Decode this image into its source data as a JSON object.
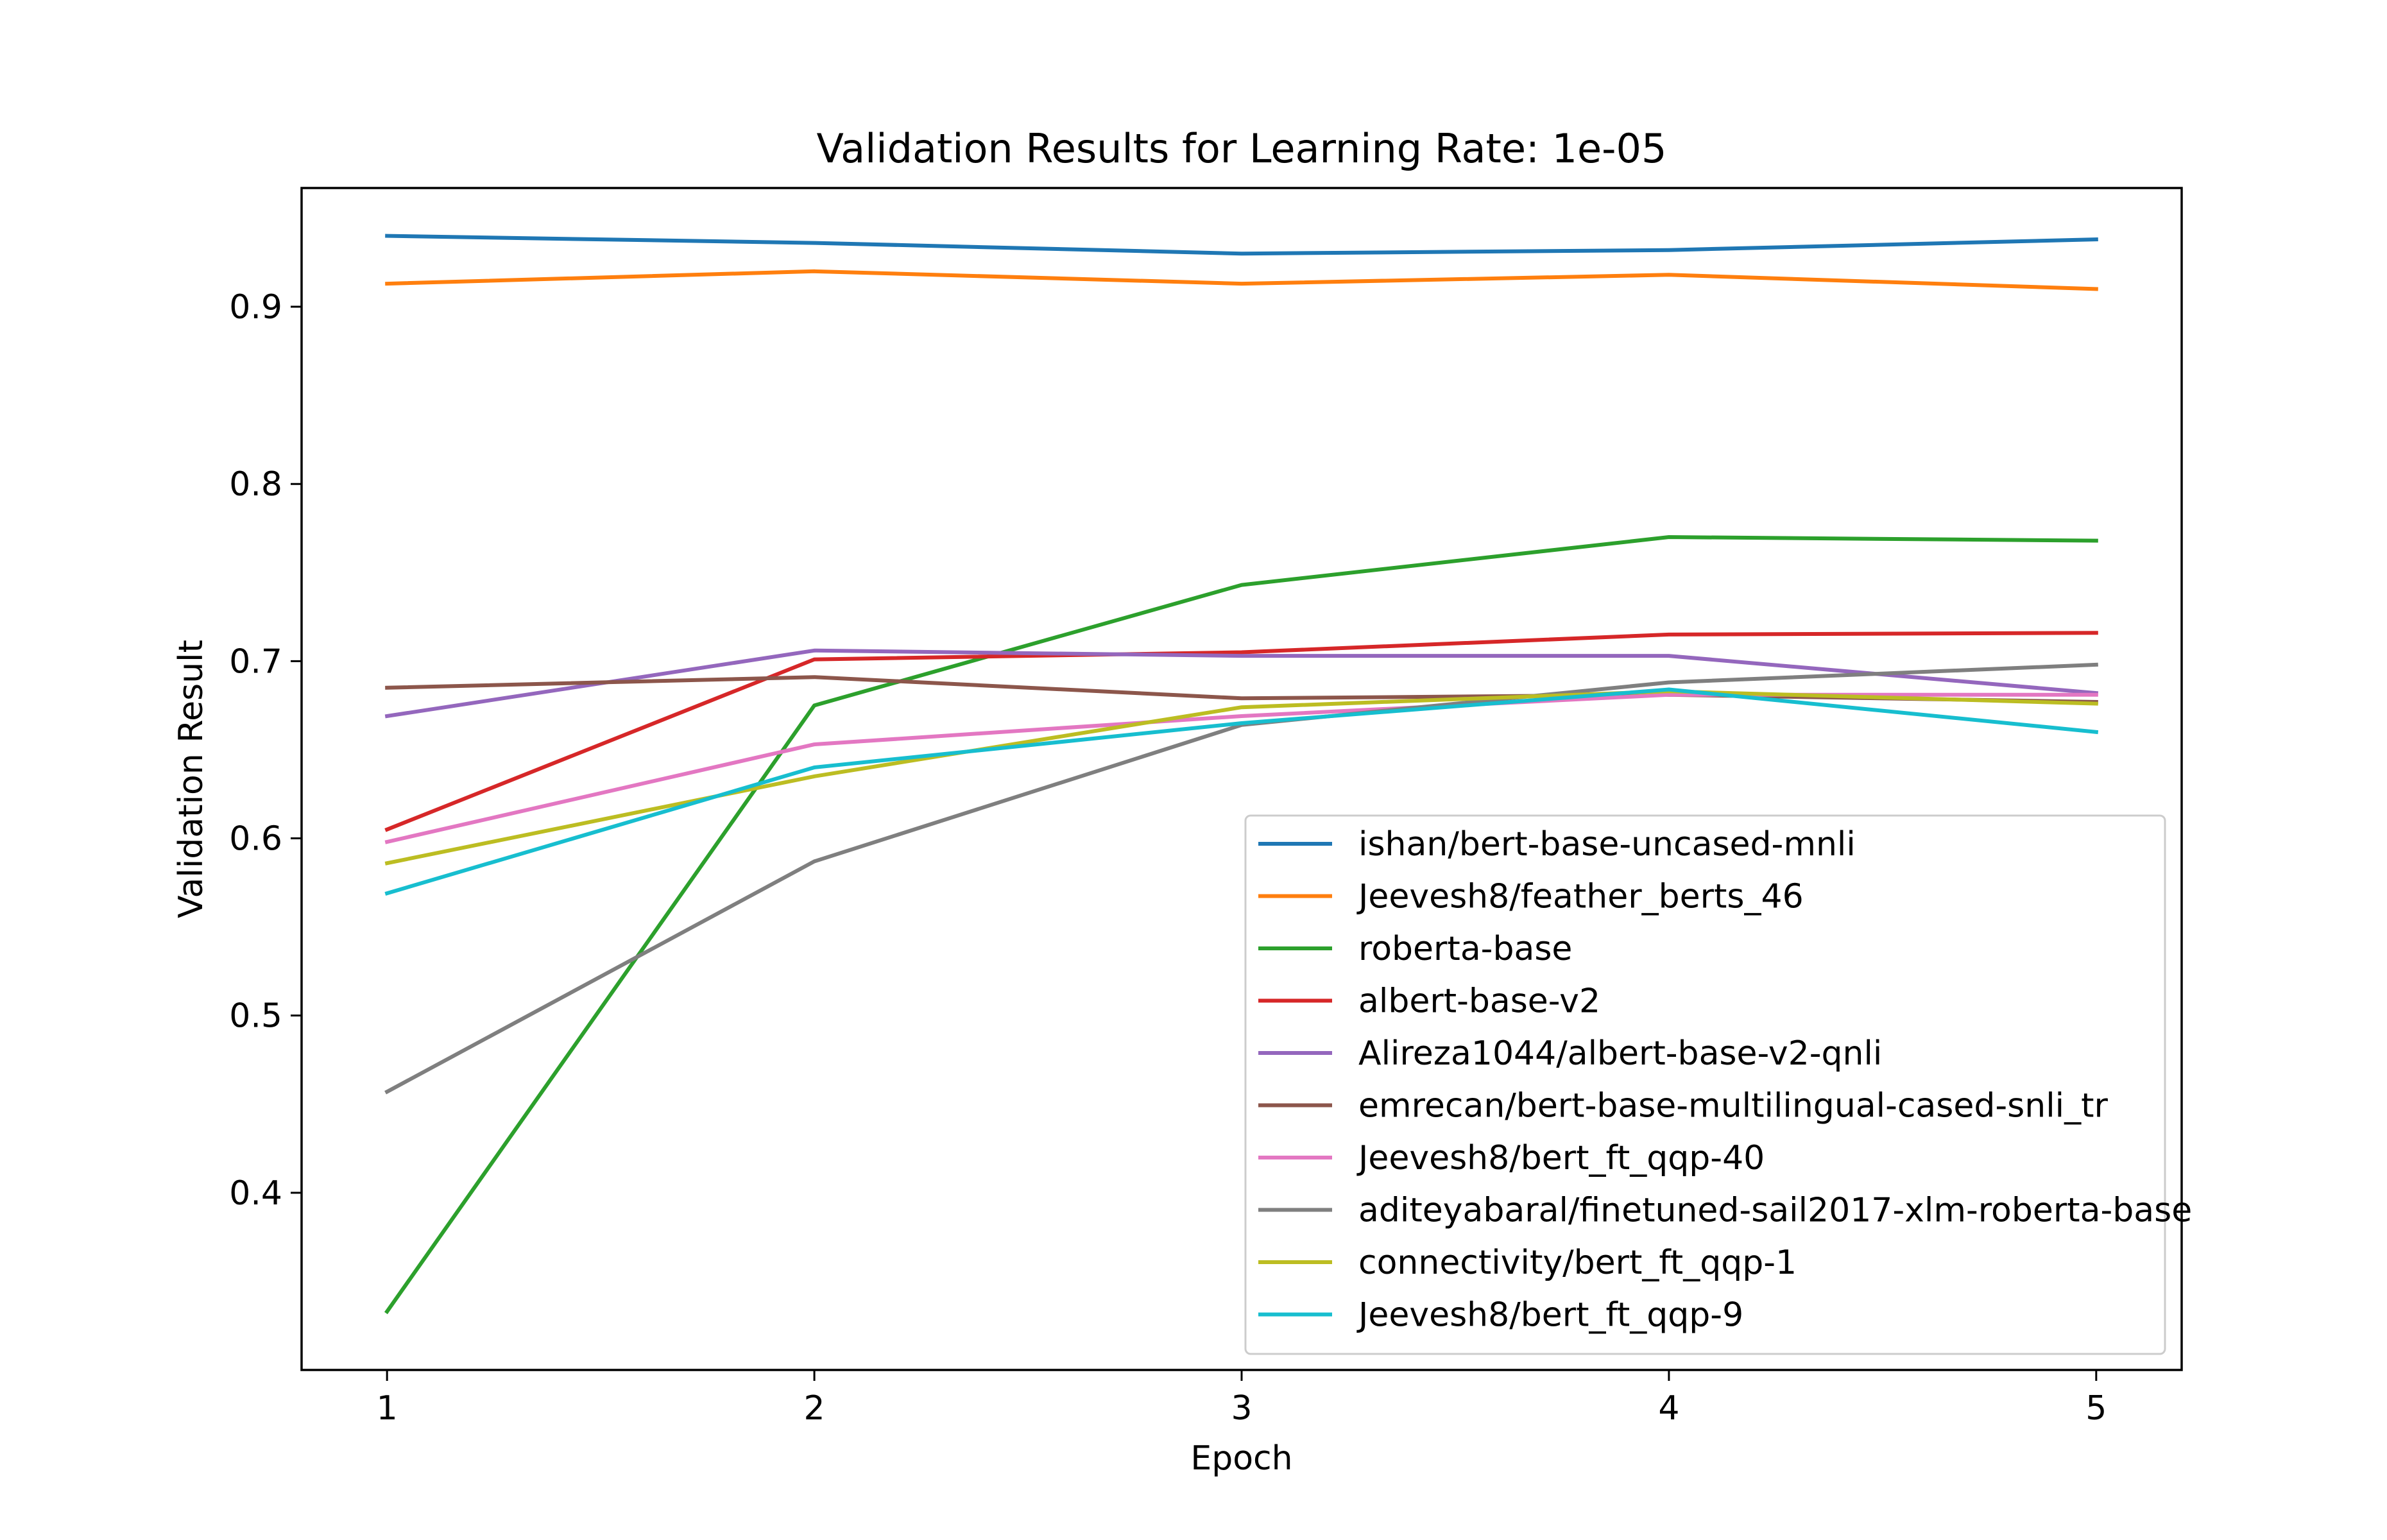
{
  "chart_data": {
    "type": "line",
    "title": "Validation Results for Learning Rate: 1e-05",
    "xlabel": "Epoch",
    "ylabel": "Validation Result",
    "x": [
      1,
      2,
      3,
      4,
      5
    ],
    "xlim": [
      0.8,
      5.2
    ],
    "ylim": [
      0.3,
      0.967
    ],
    "xticks": [
      "1",
      "2",
      "3",
      "4",
      "5"
    ],
    "yticks": [
      0.4,
      0.5,
      0.6,
      0.7,
      0.8,
      0.9
    ],
    "ytick_labels": [
      "0.4",
      "0.5",
      "0.6",
      "0.7",
      "0.8",
      "0.9"
    ],
    "grid": false,
    "legend_position": "lower right",
    "series": [
      {
        "name": "ishan/bert-base-uncased-mnli",
        "color": "#1f77b4",
        "values": [
          0.94,
          0.936,
          0.93,
          0.932,
          0.938
        ]
      },
      {
        "name": "Jeevesh8/feather_berts_46",
        "color": "#ff7f0e",
        "values": [
          0.913,
          0.92,
          0.913,
          0.918,
          0.91
        ]
      },
      {
        "name": "roberta-base",
        "color": "#2ca02c",
        "values": [
          0.333,
          0.675,
          0.743,
          0.77,
          0.768
        ]
      },
      {
        "name": "albert-base-v2",
        "color": "#d62728",
        "values": [
          0.605,
          0.701,
          0.705,
          0.715,
          0.716
        ]
      },
      {
        "name": "Alireza1044/albert-base-v2-qnli",
        "color": "#9467bd",
        "values": [
          0.669,
          0.706,
          0.703,
          0.703,
          0.682
        ]
      },
      {
        "name": "emrecan/bert-base-multilingual-cased-snli_tr",
        "color": "#8c564b",
        "values": [
          0.685,
          0.691,
          0.679,
          0.681,
          0.677
        ]
      },
      {
        "name": "Jeevesh8/bert_ft_qqp-40",
        "color": "#e377c2",
        "values": [
          0.598,
          0.653,
          0.669,
          0.681,
          0.681
        ]
      },
      {
        "name": "aditeyabaral/finetuned-sail2017-xlm-roberta-base",
        "color": "#7f7f7f",
        "values": [
          0.457,
          0.587,
          0.664,
          0.688,
          0.698
        ]
      },
      {
        "name": "connectivity/bert_ft_qqp-1",
        "color": "#bcbd22",
        "values": [
          0.586,
          0.635,
          0.674,
          0.683,
          0.676
        ]
      },
      {
        "name": "Jeevesh8/bert_ft_qqp-9",
        "color": "#17becf",
        "values": [
          0.569,
          0.64,
          0.665,
          0.684,
          0.66
        ]
      }
    ]
  }
}
